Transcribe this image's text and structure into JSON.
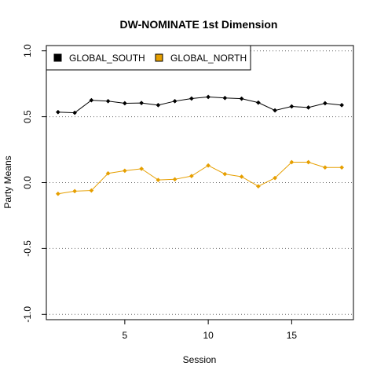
{
  "chart_data": {
    "type": "line",
    "title": "DW-NOMINATE 1st Dimension",
    "xlabel": "Session",
    "ylabel": "Party Means",
    "xlim": [
      0.3,
      18.7
    ],
    "ylim": [
      -1.04,
      1.04
    ],
    "x_ticks": [
      5,
      10,
      15
    ],
    "y_ticks": [
      -1.0,
      -0.5,
      0.0,
      0.5,
      1.0
    ],
    "y_tick_labels": [
      "-1.0",
      "-0.5",
      "0.0",
      "0.5",
      "1.0"
    ],
    "grid": "horizontal-dotted",
    "legend_position": "top-left",
    "x": [
      1,
      2,
      3,
      4,
      5,
      6,
      7,
      8,
      9,
      10,
      11,
      12,
      13,
      14,
      15,
      16,
      17,
      18
    ],
    "series": [
      {
        "name": "GLOBAL_SOUTH",
        "color": "#000000",
        "values": [
          0.535,
          0.53,
          0.625,
          0.618,
          0.602,
          0.604,
          0.588,
          0.618,
          0.638,
          0.65,
          0.642,
          0.637,
          0.607,
          0.548,
          0.578,
          0.57,
          0.602,
          0.588
        ]
      },
      {
        "name": "GLOBAL_NORTH",
        "color": "#E69F00",
        "values": [
          -0.085,
          -0.065,
          -0.06,
          0.07,
          0.09,
          0.105,
          0.02,
          0.025,
          0.05,
          0.13,
          0.065,
          0.045,
          -0.028,
          0.035,
          0.155,
          0.155,
          0.115,
          0.115
        ]
      }
    ]
  }
}
